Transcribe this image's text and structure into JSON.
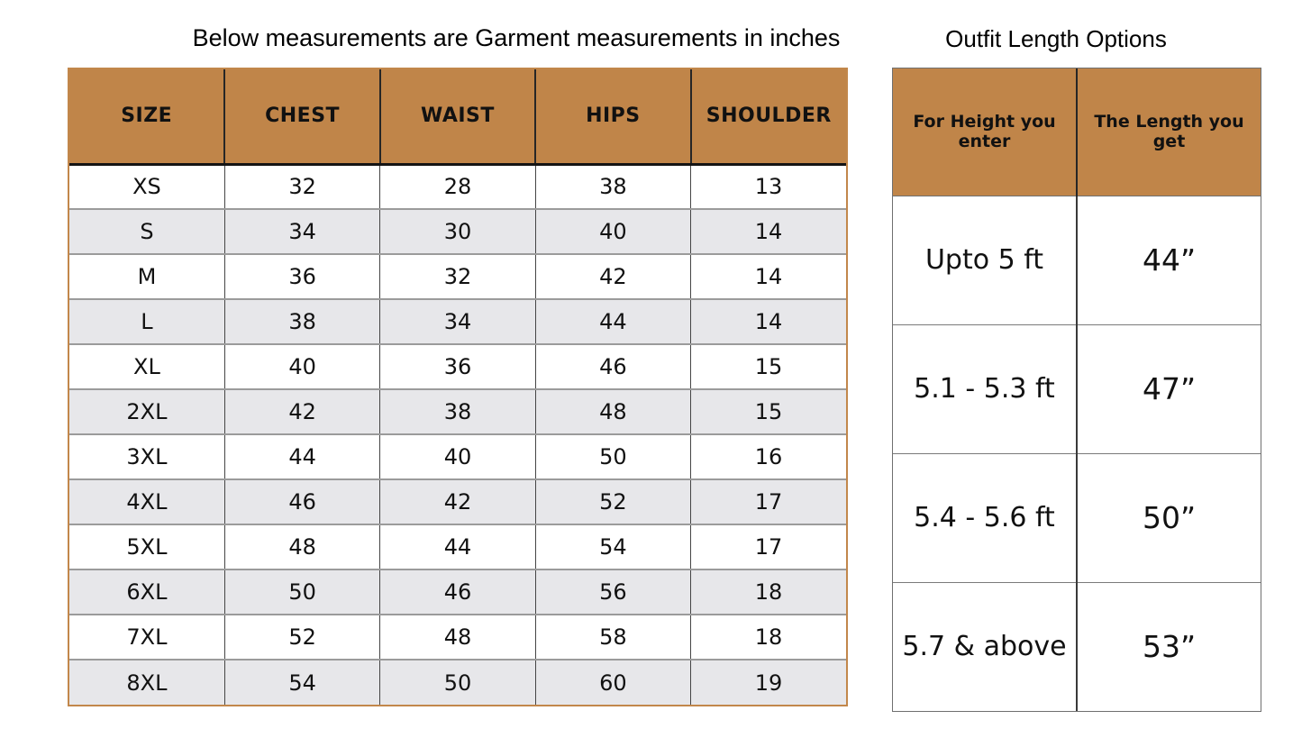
{
  "colors": {
    "header_bg": "#c08549",
    "alt_row_bg": "#e7e7ea",
    "left_outer_border": "#c2874b",
    "right_border": "#6f6f6f"
  },
  "left_table": {
    "title": "Below measurements are Garment measurements in inches",
    "headers": [
      "SIZE",
      "CHEST",
      "WAIST",
      "HIPS",
      "SHOULDER"
    ],
    "rows": [
      [
        "XS",
        "32",
        "28",
        "38",
        "13"
      ],
      [
        "S",
        "34",
        "30",
        "40",
        "14"
      ],
      [
        "M",
        "36",
        "32",
        "42",
        "14"
      ],
      [
        "L",
        "38",
        "34",
        "44",
        "14"
      ],
      [
        "XL",
        "40",
        "36",
        "46",
        "15"
      ],
      [
        "2XL",
        "42",
        "38",
        "48",
        "15"
      ],
      [
        "3XL",
        "44",
        "40",
        "50",
        "16"
      ],
      [
        "4XL",
        "46",
        "42",
        "52",
        "17"
      ],
      [
        "5XL",
        "48",
        "44",
        "54",
        "17"
      ],
      [
        "6XL",
        "50",
        "46",
        "56",
        "18"
      ],
      [
        "7XL",
        "52",
        "48",
        "58",
        "18"
      ],
      [
        "8XL",
        "54",
        "50",
        "60",
        "19"
      ]
    ]
  },
  "right_table": {
    "title": "Outfit Length Options",
    "headers": [
      "For Height you enter",
      "The Length you get"
    ],
    "rows": [
      [
        "Upto 5 ft",
        "44”"
      ],
      [
        "5.1 - 5.3 ft",
        "47”"
      ],
      [
        "5.4 - 5.6 ft",
        "50”"
      ],
      [
        "5.7 & above",
        "53”"
      ]
    ]
  }
}
